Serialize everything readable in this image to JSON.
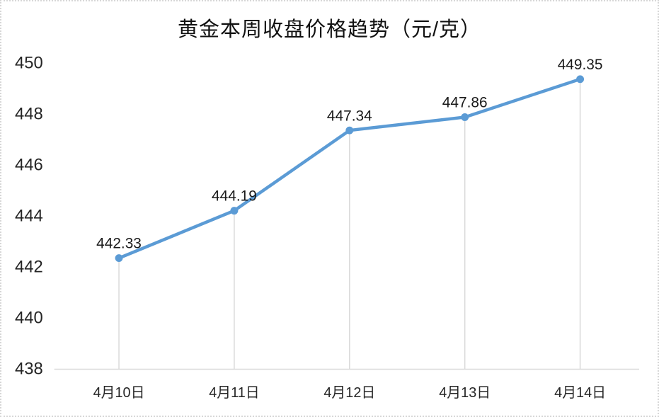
{
  "chart_data": {
    "type": "line",
    "title": "黄金本周收盘价格趋势（元/克）",
    "categories": [
      "4月10日",
      "4月11日",
      "4月12日",
      "4月13日",
      "4月14日"
    ],
    "values": [
      442.33,
      444.19,
      447.34,
      447.86,
      449.35
    ],
    "data_labels": [
      "442.33",
      "444.19",
      "447.34",
      "447.86",
      "449.35"
    ],
    "y_ticks": [
      "450",
      "448",
      "446",
      "444",
      "442",
      "440",
      "438"
    ],
    "ylim": [
      438,
      450
    ],
    "xlabel": "",
    "ylabel": "",
    "legend": "none",
    "grid": "vertical-droplines-only",
    "colors": {
      "line": "#5B9BD5",
      "marker": "#5B9BD5",
      "dropline": "#D9D9D9",
      "axis_line": "#D9D9D9",
      "tick_text": "#262626",
      "label_text": "#1a1a1a"
    }
  }
}
